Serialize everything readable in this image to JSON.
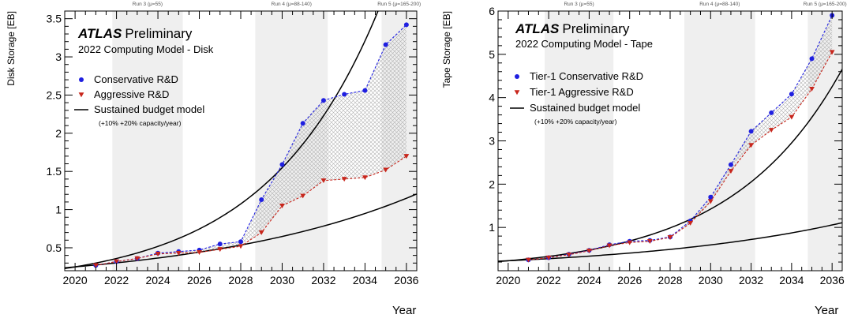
{
  "colors": {
    "conservative": "#1f1fe0",
    "aggressive": "#c8261c",
    "budget": "#000000",
    "run_band": "#efefef",
    "hatch": "#b0b0b0",
    "axis": "#000000"
  },
  "chart_data": [
    {
      "type": "line",
      "title": "ATLAS Preliminary",
      "title_bold": "ATLAS",
      "title_rest": "Preliminary",
      "subtitle": "2022 Computing Model - Disk",
      "xlabel": "Year",
      "ylabel": "Disk Storage [EB]",
      "xlim": [
        2019.5,
        2036.5
      ],
      "ylim": [
        0.2,
        3.6
      ],
      "xticks": [
        2020,
        2022,
        2024,
        2026,
        2028,
        2030,
        2032,
        2034,
        2036
      ],
      "yticks": [
        0.5,
        1,
        1.5,
        2,
        2.5,
        3,
        3.5
      ],
      "ytick_labels": [
        "0.5",
        "1",
        "1.5",
        "2",
        "2.5",
        "3",
        "3.5"
      ],
      "grid": false,
      "legend_position": "upper-left",
      "runs": [
        {
          "label": "Run 3 (μ=55)",
          "start": 2021.8,
          "end": 2025.2,
          "shaded": true
        },
        {
          "label": "Run 4 (μ=88-140)",
          "start": 2028.7,
          "end": 2032.2,
          "shaded": true
        },
        {
          "label": "Run 5 (μ=165-200)",
          "start": 2034.8,
          "end": 2036.5,
          "shaded": true
        }
      ],
      "series": [
        {
          "name": "Conservative R&D",
          "marker": "circle",
          "x": [
            2021,
            2022,
            2023,
            2024,
            2025,
            2026,
            2027,
            2028,
            2029,
            2030,
            2031,
            2032,
            2033,
            2034,
            2035,
            2036
          ],
          "values": [
            0.27,
            0.32,
            0.36,
            0.43,
            0.45,
            0.47,
            0.55,
            0.58,
            1.13,
            1.59,
            2.13,
            2.43,
            2.51,
            2.56,
            3.16,
            3.42
          ]
        },
        {
          "name": "Aggressive R&D",
          "marker": "triangle-down",
          "x": [
            2021,
            2022,
            2023,
            2024,
            2025,
            2026,
            2027,
            2028,
            2029,
            2030,
            2031,
            2032,
            2033,
            2034,
            2035,
            2036
          ],
          "values": [
            0.27,
            0.32,
            0.36,
            0.42,
            0.43,
            0.44,
            0.48,
            0.52,
            0.7,
            1.05,
            1.18,
            1.38,
            1.4,
            1.42,
            1.52,
            1.7
          ]
        }
      ],
      "budget_curves": [
        {
          "name": "Sustained budget model (+10% capacity/year)",
          "start_value": 0.25,
          "start_year": 2020,
          "growth": 0.1
        },
        {
          "name": "Sustained budget model (+20% capacity/year)",
          "start_value": 0.25,
          "start_year": 2020,
          "growth": 0.2
        }
      ],
      "legend": [
        {
          "label": "Conservative R&D",
          "marker": "circle"
        },
        {
          "label": "Aggressive R&D",
          "marker": "triangle-down"
        },
        {
          "label": "Sustained budget model",
          "marker": "line"
        }
      ],
      "legend_note": "(+10% +20% capacity/year)"
    },
    {
      "type": "line",
      "title": "ATLAS Preliminary",
      "title_bold": "ATLAS",
      "title_rest": "Preliminary",
      "subtitle": "2022 Computing Model - Tape",
      "xlabel": "Year",
      "ylabel": "Tape Storage [EB]",
      "xlim": [
        2019.5,
        2036.5
      ],
      "ylim": [
        0,
        6
      ],
      "xticks": [
        2020,
        2022,
        2024,
        2026,
        2028,
        2030,
        2032,
        2034,
        2036
      ],
      "yticks": [
        1,
        2,
        3,
        4,
        5,
        6
      ],
      "ytick_labels": [
        "1",
        "2",
        "3",
        "4",
        "5",
        "6"
      ],
      "grid": false,
      "legend_position": "upper-left",
      "runs": [
        {
          "label": "Run 3 (μ=55)",
          "start": 2021.8,
          "end": 2025.2,
          "shaded": true
        },
        {
          "label": "Run 4 (μ=88-140)",
          "start": 2028.7,
          "end": 2032.2,
          "shaded": true
        },
        {
          "label": "Run 5 (μ=165-200)",
          "start": 2034.8,
          "end": 2036.5,
          "shaded": true
        }
      ],
      "series": [
        {
          "name": "Tier-1 Conservative R&D",
          "marker": "circle",
          "x": [
            2021,
            2022,
            2023,
            2024,
            2025,
            2026,
            2027,
            2028,
            2029,
            2030,
            2031,
            2032,
            2033,
            2034,
            2035,
            2036
          ],
          "values": [
            0.25,
            0.3,
            0.38,
            0.47,
            0.6,
            0.68,
            0.7,
            0.78,
            1.15,
            1.7,
            2.45,
            3.22,
            3.65,
            4.08,
            4.9,
            5.9
          ]
        },
        {
          "name": "Tier-1 Aggressive R&D",
          "marker": "triangle-down",
          "x": [
            2021,
            2022,
            2023,
            2024,
            2025,
            2026,
            2027,
            2028,
            2029,
            2030,
            2031,
            2032,
            2033,
            2034,
            2035,
            2036
          ],
          "values": [
            0.25,
            0.3,
            0.37,
            0.46,
            0.58,
            0.65,
            0.68,
            0.77,
            1.1,
            1.6,
            2.3,
            2.9,
            3.25,
            3.55,
            4.2,
            5.05
          ]
        }
      ],
      "budget_curves": [
        {
          "name": "Sustained budget model (+10% capacity/year)",
          "start_value": 0.23,
          "start_year": 2020,
          "growth": 0.1
        },
        {
          "name": "Sustained budget model (+20% capacity/year)",
          "start_value": 0.23,
          "start_year": 2020,
          "growth": 0.2
        }
      ],
      "legend": [
        {
          "label": "Tier-1 Conservative R&D",
          "marker": "circle"
        },
        {
          "label": "Tier-1 Aggressive R&D",
          "marker": "triangle-down"
        },
        {
          "label": "Sustained budget model",
          "marker": "line"
        }
      ],
      "legend_note": "(+10% +20% capacity/year)"
    }
  ]
}
